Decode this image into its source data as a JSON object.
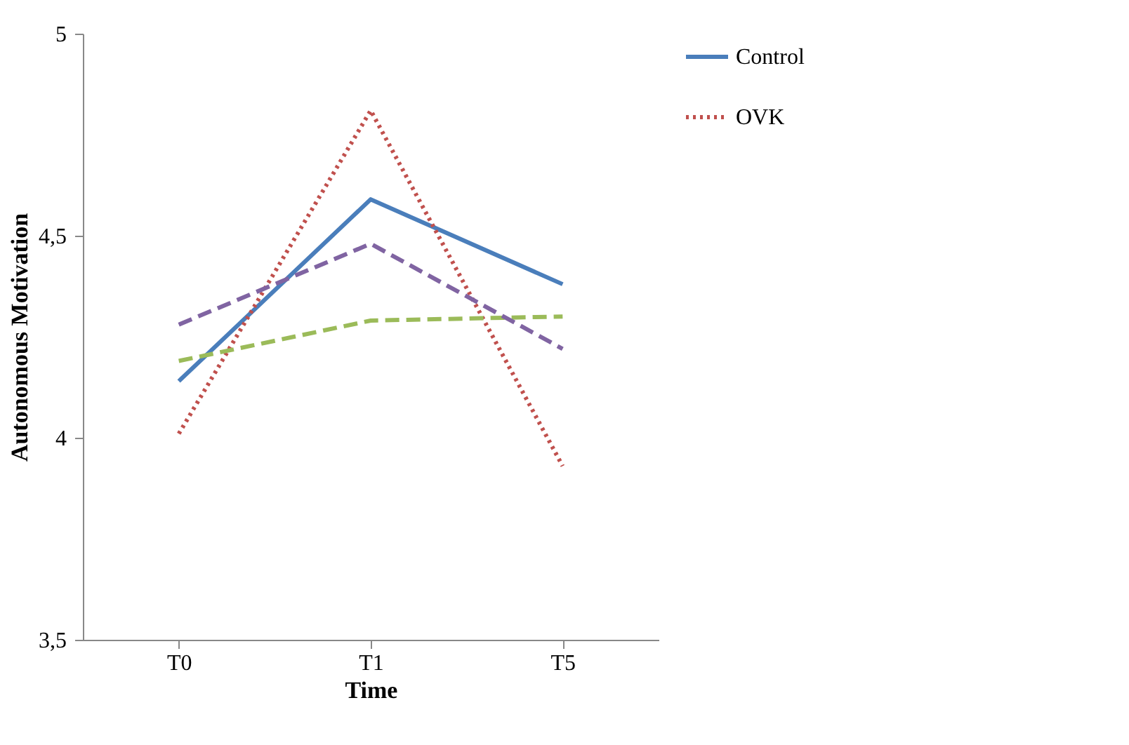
{
  "chart_data": {
    "type": "line",
    "xlabel": "Time",
    "ylabel": "Autonomous Motivation",
    "categories": [
      "T0",
      "T1",
      "T5"
    ],
    "series": [
      {
        "name": "Control",
        "color": "#4a7ebb",
        "line_style": "solid",
        "values": [
          4.14,
          4.59,
          4.38
        ]
      },
      {
        "name": "OVK",
        "color": "#c0504d",
        "line_style": "dotted",
        "values": [
          4.01,
          4.81,
          3.93
        ]
      },
      {
        "color": "#9bbb59",
        "line_style": "dashed",
        "values": [
          4.19,
          4.29,
          4.3
        ]
      },
      {
        "color": "#8064a2",
        "line_style": "dashed",
        "values": [
          4.28,
          4.48,
          4.22
        ]
      }
    ],
    "ylim": [
      3.5,
      5
    ],
    "yticks": [
      {
        "value": 3.5,
        "label": "3,5"
      },
      4,
      {
        "value": 4.5,
        "label": "4,5"
      },
      5
    ],
    "grid": false,
    "legend": "right",
    "marker": "none"
  }
}
